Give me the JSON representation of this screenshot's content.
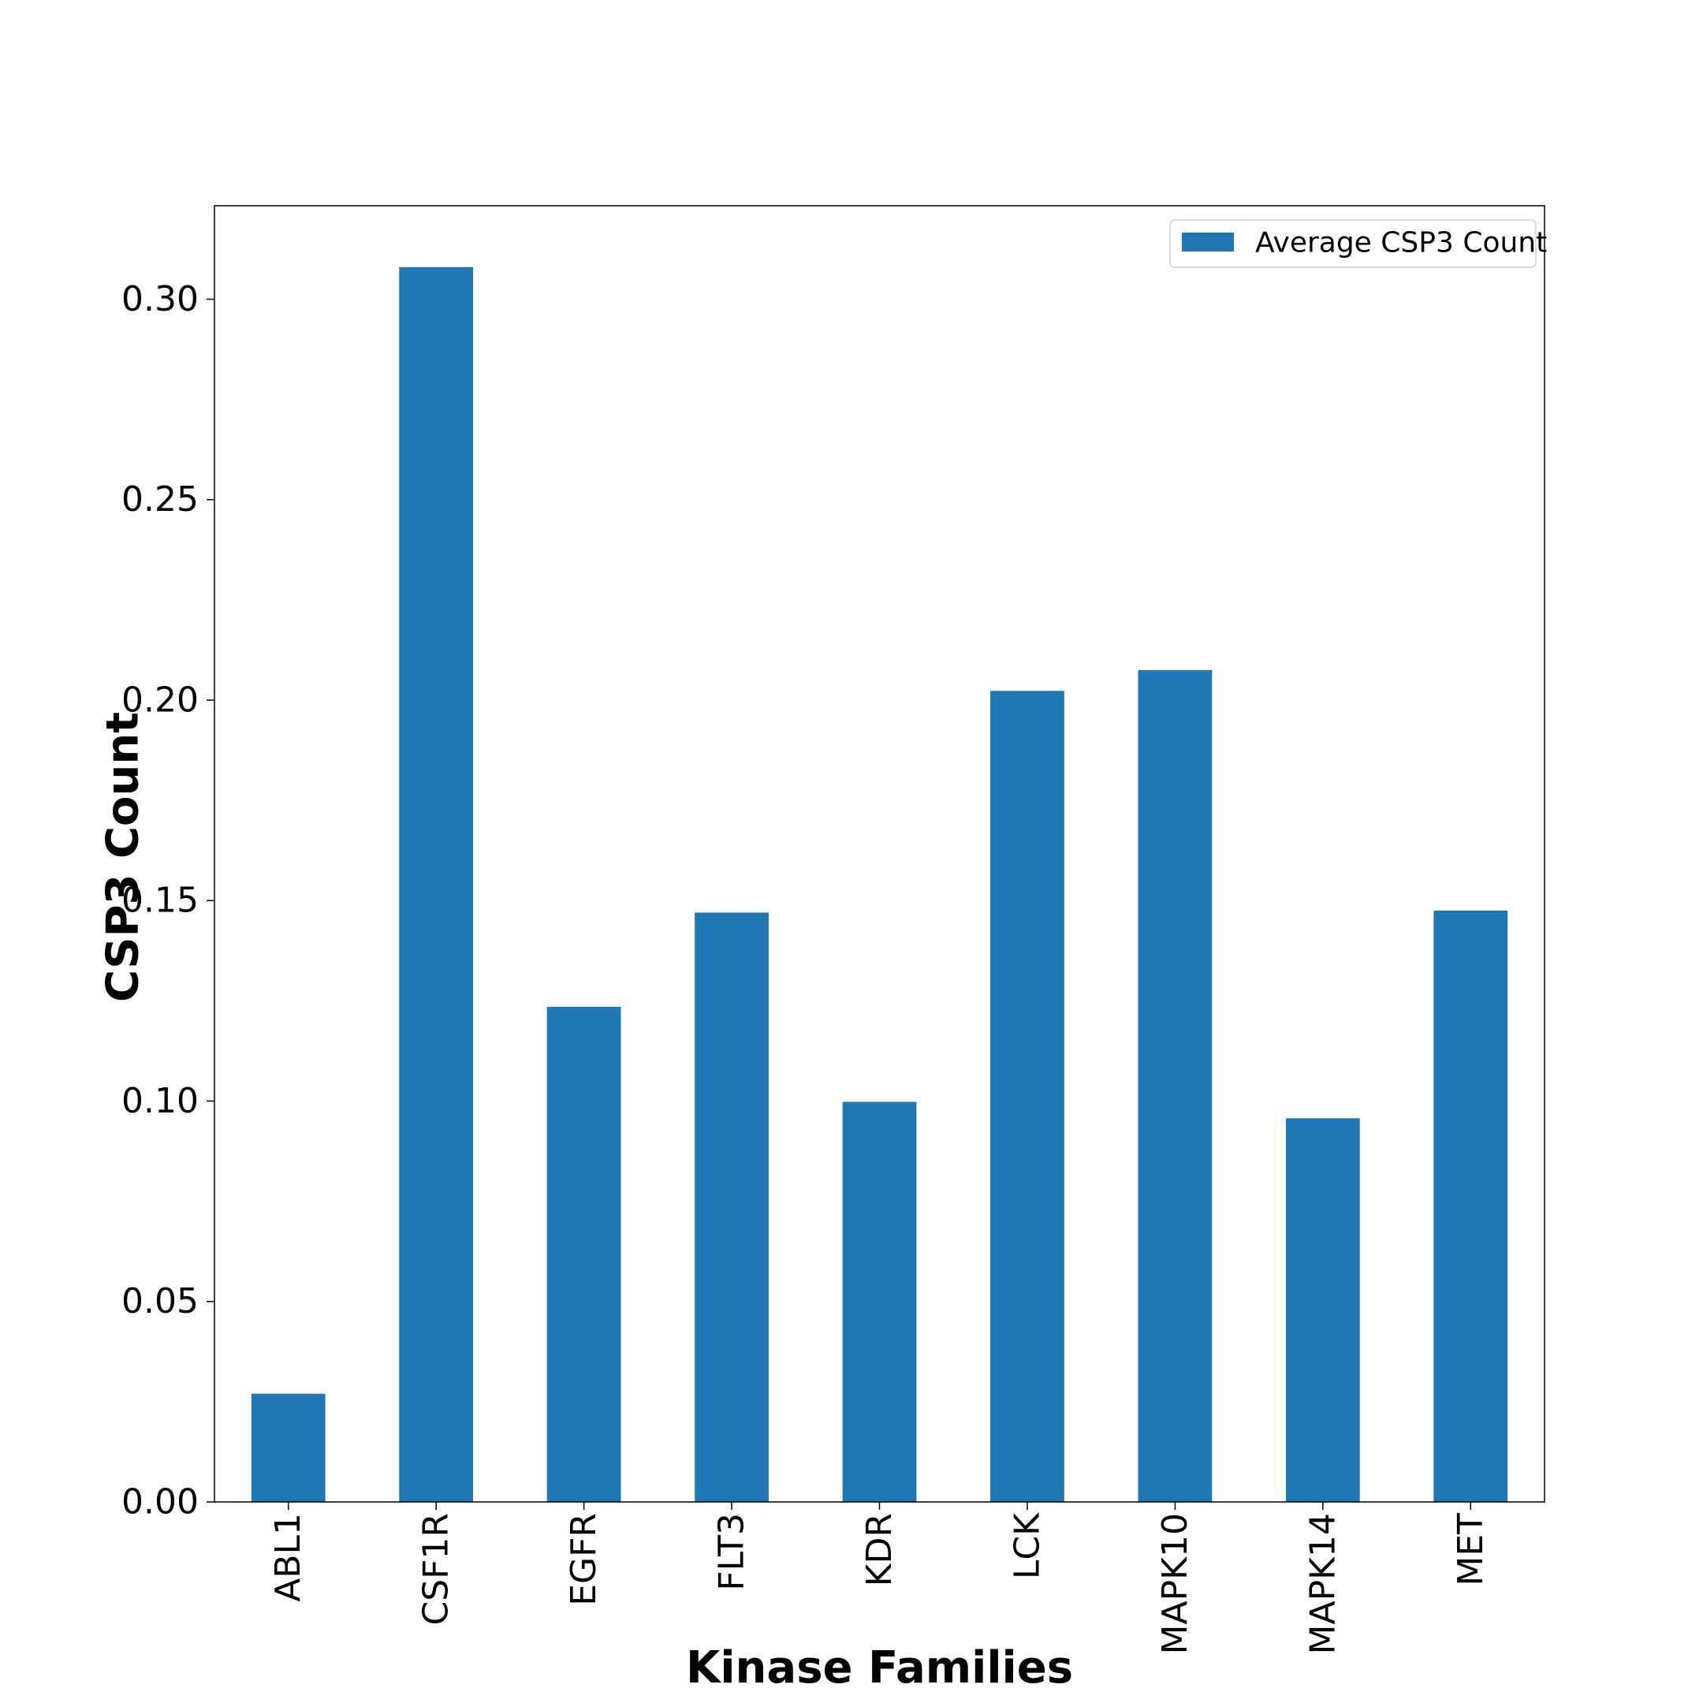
{
  "chart_data": {
    "type": "bar",
    "categories": [
      "ABL1",
      "CSF1R",
      "EGFR",
      "FLT3",
      "KDR",
      "LCK",
      "MAPK10",
      "MAPK14",
      "MET"
    ],
    "series": [
      {
        "name": "Average CSP3 Count",
        "color": "#1f77b4",
        "values": [
          0.027,
          0.308,
          0.1235,
          0.147,
          0.0998,
          0.2023,
          0.2075,
          0.0957,
          0.1475
        ]
      }
    ],
    "xlabel": "Kinase Families",
    "ylabel": "CSP3 Count",
    "ylim": [
      0,
      0.3233
    ],
    "yticks": [
      "0.00",
      "0.05",
      "0.10",
      "0.15",
      "0.20",
      "0.25",
      "0.30"
    ],
    "ytick_values": [
      0,
      0.05,
      0.1,
      0.15,
      0.2,
      0.25,
      0.3
    ],
    "x_tick_rotation": "vertical",
    "grid": false,
    "legend": "top-right"
  }
}
